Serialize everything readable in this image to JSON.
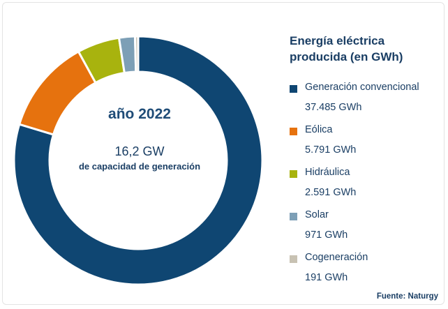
{
  "center": {
    "year_label": "año 2022",
    "capacity_value": "16,2 GW",
    "capacity_label": "de capacidad de generación"
  },
  "legend": {
    "title": "Energía eléctrica producida (en GWh)"
  },
  "source": "Fuente: Naturgy",
  "chart_data": {
    "type": "pie",
    "variant": "donut",
    "title": "Energía eléctrica producida (en GWh)",
    "unit": "GWh",
    "categories": [
      "Generación convencional",
      "Eólica",
      "Hidráulica",
      "Solar",
      "Cogeneración"
    ],
    "values": [
      37485,
      5791,
      2591,
      971,
      191
    ],
    "value_labels": [
      "37.485 GWh",
      "5.791 GWh",
      "2.591 GWh",
      "971 GWh",
      "191 GWh"
    ],
    "colors": [
      "#0f4672",
      "#e6720e",
      "#a8b30e",
      "#7d9fb6",
      "#c8c2b3"
    ],
    "start": "top",
    "direction": "clockwise",
    "legend_position": "right"
  }
}
